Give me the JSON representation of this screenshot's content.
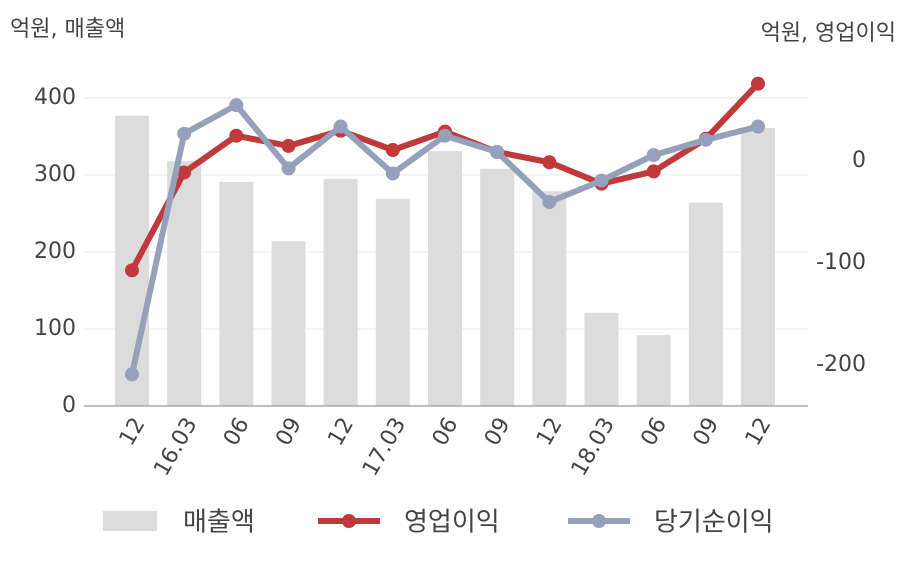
{
  "chart_data": {
    "type": "bar-line",
    "y_label": "억원, 매출액",
    "y2_label": "억원, 영업이익",
    "categories": [
      "12",
      "16.03",
      "06",
      "09",
      "12",
      "17.03",
      "06",
      "09",
      "12",
      "18.03",
      "06",
      "09",
      "12"
    ],
    "series": [
      {
        "name": "매출액",
        "type": "bar",
        "color": "#dcdcdc",
        "values": [
          377,
          318,
          291,
          214,
          295,
          269,
          331,
          308,
          279,
          121,
          92,
          264,
          361
        ]
      },
      {
        "name": "영업이익",
        "type": "line",
        "axis": "y2",
        "color": "#c0393b",
        "values": [
          -107,
          -11,
          25,
          15,
          30,
          11,
          29,
          9,
          -1,
          -22,
          -10,
          22,
          76
        ]
      },
      {
        "name": "당기순이익",
        "type": "line",
        "axis": "y2",
        "color": "#95a1ba",
        "values": [
          -209,
          27,
          55,
          -7,
          34,
          -12,
          25,
          9,
          -40,
          -19,
          6,
          21,
          34
        ]
      }
    ],
    "ylim": [
      0,
      400
    ],
    "yticks": [
      0,
      100,
      200,
      300,
      400
    ],
    "y2lim": [
      -240,
      62
    ],
    "y2ticks": [
      -200,
      -100,
      0
    ],
    "grid": true
  }
}
